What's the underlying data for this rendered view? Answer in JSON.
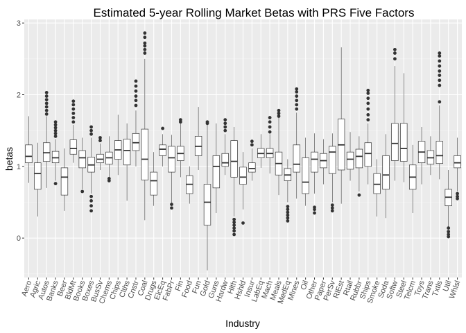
{
  "chart_data": {
    "type": "box",
    "title": "Estimated 5-year Rolling Market Betas with PRS Five Factors",
    "xlabel": "Industry",
    "ylabel": "betas",
    "ylim": [
      -0.55,
      3.05
    ],
    "yticks": [
      0,
      1,
      2,
      3
    ],
    "grid": true,
    "legend": "none",
    "colors": {
      "panel": "#ebebeb",
      "grid_major": "#ffffff",
      "grid_minor": "#f5f5f5",
      "box_fill": "#ffffff",
      "box_line": "#333333",
      "outlier": "#333333"
    },
    "categories": [
      "Aero",
      "Agric",
      "Autos",
      "Banks",
      "Beer",
      "BldMt",
      "Books",
      "Boxes",
      "BusSv",
      "Chems",
      "Chips",
      "Clths",
      "Cnstr",
      "Coal",
      "Drugs",
      "ElcEq",
      "FabPr",
      "Fin",
      "Food",
      "Fun",
      "Gold",
      "Guns",
      "Hardw",
      "Hlth",
      "Hshld",
      "Insur",
      "LabEq",
      "Mach",
      "Meals",
      "MedEq",
      "Mines",
      "Oil",
      "Other",
      "Paper",
      "PerSv",
      "RlEst",
      "Rtail",
      "Rubbr",
      "Ships",
      "Smoke",
      "Soda",
      "Softw",
      "Steel",
      "Telcm",
      "Toys",
      "Trans",
      "Txtls",
      "Util",
      "Whlsl"
    ],
    "boxes": [
      {
        "whisker_low": 0.77,
        "q1": 1.05,
        "median": 1.14,
        "q3": 1.3,
        "whisker_high": 1.7,
        "outliers": []
      },
      {
        "whisker_low": 0.3,
        "q1": 0.68,
        "median": 0.9,
        "q3": 1.05,
        "whisker_high": 1.33,
        "outliers": []
      },
      {
        "whisker_low": 0.7,
        "q1": 1.07,
        "median": 1.19,
        "q3": 1.33,
        "whisker_high": 1.7,
        "outliers": [
          1.73,
          1.78,
          1.83,
          1.88,
          1.93,
          1.98,
          2.03
        ]
      },
      {
        "whisker_low": 0.8,
        "q1": 1.05,
        "median": 1.12,
        "q3": 1.21,
        "whisker_high": 1.38,
        "outliers": [
          1.42,
          1.46,
          1.5,
          1.54,
          1.58,
          1.62,
          0.76
        ]
      },
      {
        "whisker_low": 0.38,
        "q1": 0.6,
        "median": 0.85,
        "q3": 0.98,
        "whisker_high": 1.25,
        "outliers": []
      },
      {
        "whisker_low": 1.05,
        "q1": 1.17,
        "median": 1.25,
        "q3": 1.37,
        "whisker_high": 1.58,
        "outliers": [
          1.62,
          1.68,
          1.74,
          1.8,
          1.86,
          1.91
        ]
      },
      {
        "whisker_low": 0.68,
        "q1": 0.98,
        "median": 1.12,
        "q3": 1.22,
        "whisker_high": 1.4,
        "outliers": [
          0.65
        ]
      },
      {
        "whisker_low": 0.62,
        "q1": 0.92,
        "median": 1.02,
        "q3": 1.13,
        "whisker_high": 1.4,
        "outliers": [
          0.38,
          0.45,
          0.52,
          0.58,
          1.45,
          1.5,
          1.55
        ]
      },
      {
        "whisker_low": 0.95,
        "q1": 1.05,
        "median": 1.1,
        "q3": 1.17,
        "whisker_high": 1.32,
        "outliers": [
          1.36,
          1.4
        ]
      },
      {
        "whisker_low": 0.85,
        "q1": 1.03,
        "median": 1.12,
        "q3": 1.2,
        "whisker_high": 1.42,
        "outliers": [
          0.8,
          0.83
        ]
      },
      {
        "whisker_low": 0.88,
        "q1": 1.1,
        "median": 1.23,
        "q3": 1.36,
        "whisker_high": 1.72,
        "outliers": []
      },
      {
        "whisker_low": 0.52,
        "q1": 1.02,
        "median": 1.22,
        "q3": 1.38,
        "whisker_high": 1.6,
        "outliers": []
      },
      {
        "whisker_low": 1.0,
        "q1": 1.22,
        "median": 1.33,
        "q3": 1.46,
        "whisker_high": 1.78,
        "outliers": [
          1.85,
          1.92,
          1.98,
          2.05,
          2.12,
          2.19
        ]
      },
      {
        "whisker_low": 0.25,
        "q1": 0.81,
        "median": 1.1,
        "q3": 1.52,
        "whisker_high": 2.5,
        "outliers": [
          2.58,
          2.63,
          2.68,
          2.72,
          2.8,
          2.86
        ]
      },
      {
        "whisker_low": 0.45,
        "q1": 0.6,
        "median": 0.8,
        "q3": 0.92,
        "whisker_high": 1.2,
        "outliers": []
      },
      {
        "whisker_low": 1.0,
        "q1": 1.15,
        "median": 1.24,
        "q3": 1.3,
        "whisker_high": 1.45,
        "outliers": [
          1.53
        ]
      },
      {
        "whisker_low": 0.48,
        "q1": 0.92,
        "median": 1.12,
        "q3": 1.28,
        "whisker_high": 1.44,
        "outliers": [
          0.42,
          0.47
        ]
      },
      {
        "whisker_low": 0.85,
        "q1": 1.08,
        "median": 1.18,
        "q3": 1.28,
        "whisker_high": 1.6,
        "outliers": [
          1.62,
          1.65
        ]
      },
      {
        "whisker_low": 0.48,
        "q1": 0.62,
        "median": 0.75,
        "q3": 0.87,
        "whisker_high": 1.0,
        "outliers": []
      },
      {
        "whisker_low": 0.95,
        "q1": 1.15,
        "median": 1.28,
        "q3": 1.42,
        "whisker_high": 1.83,
        "outliers": []
      },
      {
        "whisker_low": -0.45,
        "q1": 0.18,
        "median": 0.5,
        "q3": 0.75,
        "whisker_high": 1.58,
        "outliers": [
          1.6,
          1.62
        ]
      },
      {
        "whisker_low": 0.35,
        "q1": 0.7,
        "median": 1.0,
        "q3": 1.15,
        "whisker_high": 1.6,
        "outliers": []
      },
      {
        "whisker_low": 0.88,
        "q1": 1.0,
        "median": 1.05,
        "q3": 1.18,
        "whisker_high": 1.45,
        "outliers": [
          1.5,
          1.55,
          1.6,
          1.65
        ]
      },
      {
        "whisker_low": 0.3,
        "q1": 0.85,
        "median": 1.07,
        "q3": 1.36,
        "whisker_high": 1.55,
        "outliers": [
          0.05,
          0.1,
          0.14,
          0.18,
          0.22,
          0.26
        ]
      },
      {
        "whisker_low": 0.4,
        "q1": 0.75,
        "median": 0.85,
        "q3": 0.99,
        "whisker_high": 1.2,
        "outliers": [
          0.21
        ]
      },
      {
        "whisker_low": 0.8,
        "q1": 0.92,
        "median": 0.97,
        "q3": 1.05,
        "whisker_high": 1.25,
        "outliers": [
          1.3,
          1.35
        ]
      },
      {
        "whisker_low": 0.98,
        "q1": 1.12,
        "median": 1.18,
        "q3": 1.25,
        "whisker_high": 1.45,
        "outliers": []
      },
      {
        "whisker_low": 0.9,
        "q1": 1.12,
        "median": 1.18,
        "q3": 1.25,
        "whisker_high": 1.45,
        "outliers": [
          1.48,
          1.55,
          1.62,
          1.68
        ]
      },
      {
        "whisker_low": 0.6,
        "q1": 0.88,
        "median": 1.04,
        "q3": 1.2,
        "whisker_high": 1.68,
        "outliers": [
          1.7,
          1.74,
          1.78
        ]
      },
      {
        "whisker_low": 0.5,
        "q1": 0.8,
        "median": 0.88,
        "q3": 0.97,
        "whisker_high": 1.1,
        "outliers": [
          0.24,
          0.28,
          0.32,
          0.36,
          0.4,
          0.44
        ]
      },
      {
        "whisker_low": 0.55,
        "q1": 0.92,
        "median": 1.03,
        "q3": 1.3,
        "whisker_high": 1.75,
        "outliers": [
          1.8,
          1.86,
          1.92,
          1.98,
          2.04,
          2.08
        ]
      },
      {
        "whisker_low": 0.45,
        "q1": 0.62,
        "median": 0.78,
        "q3": 1.12,
        "whisker_high": 1.4,
        "outliers": []
      },
      {
        "whisker_low": 0.62,
        "q1": 0.92,
        "median": 1.1,
        "q3": 1.2,
        "whisker_high": 1.46,
        "outliers": [
          0.35,
          0.4,
          0.43
        ]
      },
      {
        "whisker_low": 0.75,
        "q1": 0.98,
        "median": 1.08,
        "q3": 1.18,
        "whisker_high": 1.38,
        "outliers": []
      },
      {
        "whisker_low": 0.5,
        "q1": 0.9,
        "median": 1.2,
        "q3": 1.28,
        "whisker_high": 1.46,
        "outliers": [
          0.38,
          0.42,
          0.46
        ]
      },
      {
        "whisker_low": 0.48,
        "q1": 0.95,
        "median": 1.3,
        "q3": 1.66,
        "whisker_high": 2.66,
        "outliers": []
      },
      {
        "whisker_low": 0.8,
        "q1": 0.96,
        "median": 1.1,
        "q3": 1.2,
        "whisker_high": 1.48,
        "outliers": []
      },
      {
        "whisker_low": 0.65,
        "q1": 0.98,
        "median": 1.14,
        "q3": 1.24,
        "whisker_high": 1.42,
        "outliers": [
          0.6
        ]
      },
      {
        "whisker_low": 0.75,
        "q1": 1.0,
        "median": 1.18,
        "q3": 1.33,
        "whisker_high": 1.6,
        "outliers": [
          1.65,
          1.72,
          1.8,
          1.88,
          1.95,
          2.02,
          2.06
        ]
      },
      {
        "whisker_low": 0.3,
        "q1": 0.62,
        "median": 0.75,
        "q3": 0.9,
        "whisker_high": 1.1,
        "outliers": []
      },
      {
        "whisker_low": 0.28,
        "q1": 0.68,
        "median": 0.88,
        "q3": 1.15,
        "whisker_high": 1.45,
        "outliers": []
      },
      {
        "whisker_low": 0.8,
        "q1": 1.08,
        "median": 1.32,
        "q3": 1.6,
        "whisker_high": 2.4,
        "outliers": [
          2.5,
          2.58,
          2.63
        ]
      },
      {
        "whisker_low": 0.78,
        "q1": 1.07,
        "median": 1.25,
        "q3": 1.6,
        "whisker_high": 2.3,
        "outliers": []
      },
      {
        "whisker_low": 0.35,
        "q1": 0.68,
        "median": 0.85,
        "q3": 1.02,
        "whisker_high": 1.3,
        "outliers": []
      },
      {
        "whisker_low": 0.75,
        "q1": 1.05,
        "median": 1.2,
        "q3": 1.35,
        "whisker_high": 1.55,
        "outliers": []
      },
      {
        "whisker_low": 0.88,
        "q1": 1.03,
        "median": 1.12,
        "q3": 1.22,
        "whisker_high": 1.42,
        "outliers": []
      },
      {
        "whisker_low": 0.82,
        "q1": 1.04,
        "median": 1.15,
        "q3": 1.35,
        "whisker_high": 1.85,
        "outliers": [
          1.9,
          2.13,
          2.2,
          2.27,
          2.33,
          2.4,
          2.47,
          2.54,
          2.58
        ]
      },
      {
        "whisker_low": 0.12,
        "q1": 0.45,
        "median": 0.57,
        "q3": 0.68,
        "whisker_high": 0.95,
        "outliers": [
          0.02,
          0.05,
          0.09,
          0.14
        ]
      },
      {
        "whisker_low": 0.65,
        "q1": 0.98,
        "median": 1.05,
        "q3": 1.15,
        "whisker_high": 1.4,
        "outliers": [
          0.55,
          0.58,
          0.62
        ]
      }
    ]
  }
}
